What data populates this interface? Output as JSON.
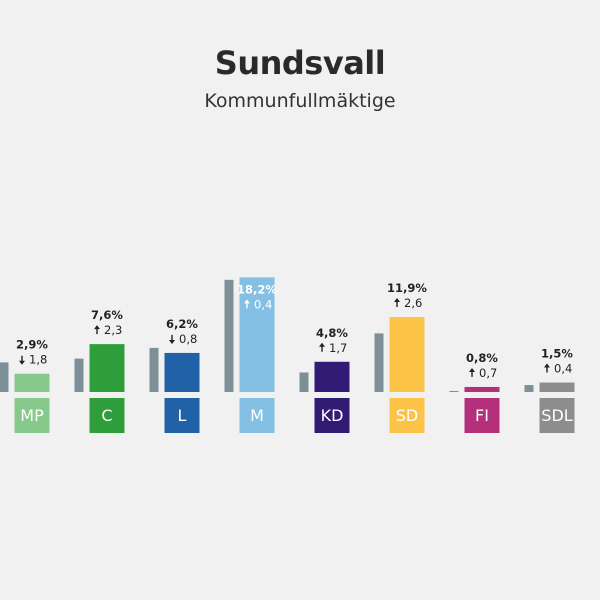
{
  "title": "Sundsvall",
  "subtitle": "Kommunfullmäktige",
  "chart_data": {
    "type": "bar",
    "title": "Sundsvall",
    "subtitle": "Kommunfullmäktige",
    "value_unit": "%",
    "ylim": [
      0,
      20
    ],
    "grid": false,
    "legend": "none",
    "categories": [
      "MP",
      "C",
      "L",
      "M",
      "KD",
      "SD",
      "FI",
      "SDL"
    ],
    "series": [
      {
        "values": [
          2.9,
          7.6,
          6.2,
          18.2,
          4.8,
          11.9,
          0.8,
          1.5
        ]
      },
      {
        "values": [
          4.7,
          5.3,
          7.0,
          17.8,
          3.1,
          9.3,
          0.1,
          1.1
        ]
      }
    ],
    "value_labels": [
      "2,9%",
      "7,6%",
      "6,2%",
      "18,2%",
      "4,8%",
      "11,9%",
      "0,8%",
      "1,5%"
    ],
    "change_labels": [
      "1,8",
      "2,3",
      "0,8",
      "0,4",
      "1,7",
      "2,6",
      "0,7",
      "0,4"
    ],
    "change_direction": [
      "down",
      "up",
      "down",
      "up",
      "up",
      "up",
      "up",
      "up"
    ],
    "party_colors": [
      "#86c98a",
      "#2e9e3a",
      "#2161a8",
      "#83c0e4",
      "#311b74",
      "#fcc447",
      "#b4307a",
      "#8d8d8d"
    ],
    "previous_color": "#7d8f97"
  }
}
